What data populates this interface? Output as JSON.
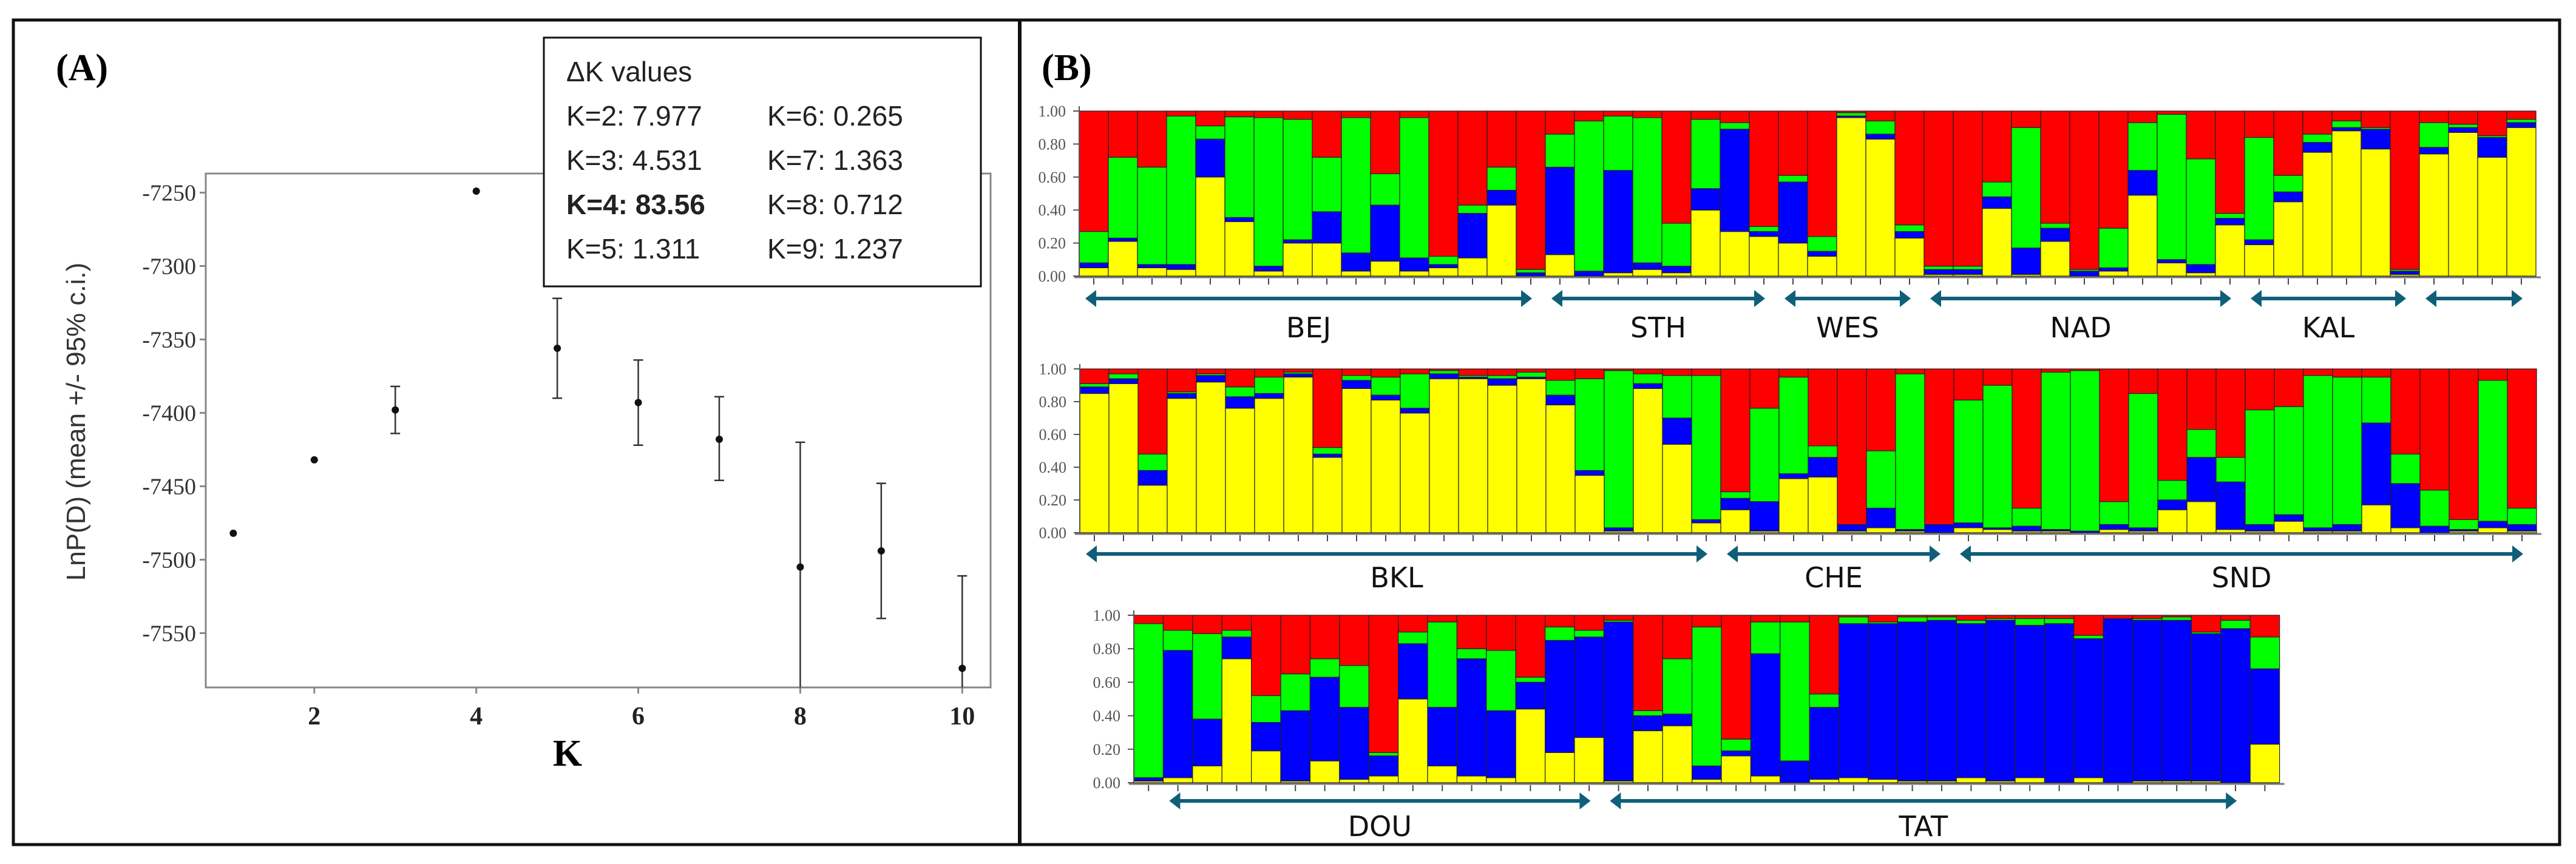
{
  "panel_a": {
    "label": "(A)",
    "legend": {
      "title": "ΔK values",
      "entries": [
        "K=2: 7.977",
        "K=6: 0.265",
        "K=3: 4.531",
        "K=7: 1.363",
        "K=4: 83.56",
        "K=8: 0.712",
        "K=5: 1.311",
        "K=9: 1.237"
      ],
      "bold_entry": "K=4: 83.56"
    }
  },
  "panel_b": {
    "label": "(B)"
  },
  "colors": {
    "cluster1": "#ffff00",
    "cluster2": "#0000ff",
    "cluster3": "#00ff00",
    "cluster4": "#ff0000",
    "arrow": "#0f5f79"
  },
  "chart_data": [
    {
      "type": "scatter",
      "title": "",
      "xlabel": "K",
      "ylabel": "LnP(D) (mean +/- 95% c.i.)",
      "xlim": [
        0.66,
        10.35
      ],
      "ylim": [
        -7587,
        -7237
      ],
      "xticks": [
        "2",
        "4",
        "6",
        "8",
        "10"
      ],
      "yticks": [
        "-7250",
        "-7300",
        "-7350",
        "-7400",
        "-7450",
        "-7500",
        "-7550"
      ],
      "grid": false,
      "points": [
        {
          "k": 1,
          "mean": -7482,
          "lo": -7483,
          "hi": -7481
        },
        {
          "k": 2,
          "mean": -7432,
          "lo": -7433,
          "hi": -7431
        },
        {
          "k": 3,
          "mean": -7398,
          "lo": -7414,
          "hi": -7382
        },
        {
          "k": 4,
          "mean": -7249,
          "lo": -7250,
          "hi": -7248
        },
        {
          "k": 5,
          "mean": -7356,
          "lo": -7390,
          "hi": -7322
        },
        {
          "k": 6,
          "mean": -7393,
          "lo": -7422,
          "hi": -7364
        },
        {
          "k": 7,
          "mean": -7418,
          "lo": -7446,
          "hi": -7389
        },
        {
          "k": 8,
          "mean": -7505,
          "lo": -7590,
          "hi": -7420
        },
        {
          "k": 9,
          "mean": -7494,
          "lo": -7540,
          "hi": -7448
        },
        {
          "k": 10,
          "mean": -7574,
          "lo": -7590,
          "hi": -7511
        }
      ]
    },
    {
      "type": "bar",
      "stacked": true,
      "yticks": [
        "1.00",
        "0.80",
        "0.60",
        "0.40",
        "0.20",
        "0.00"
      ],
      "ylim": [
        0,
        1
      ],
      "series_order": [
        "yellow",
        "blue",
        "green",
        "red"
      ],
      "individuals": [
        [
          0.05,
          0.03,
          0.19,
          0.73
        ],
        [
          0.21,
          0.02,
          0.49,
          0.28
        ],
        [
          0.05,
          0.02,
          0.59,
          0.34
        ],
        [
          0.04,
          0.03,
          0.9,
          0.03
        ],
        [
          0.6,
          0.23,
          0.08,
          0.09
        ],
        [
          0.33,
          0.025,
          0.61,
          0.035
        ],
        [
          0.03,
          0.03,
          0.9,
          0.04
        ],
        [
          0.2,
          0.02,
          0.73,
          0.05
        ],
        [
          0.2,
          0.19,
          0.33,
          0.28
        ],
        [
          0.03,
          0.11,
          0.82,
          0.04
        ],
        [
          0.09,
          0.34,
          0.19,
          0.38
        ],
        [
          0.03,
          0.08,
          0.85,
          0.04
        ],
        [
          0.05,
          0.02,
          0.05,
          0.88
        ],
        [
          0.11,
          0.27,
          0.05,
          0.57
        ],
        [
          0.43,
          0.09,
          0.14,
          0.34
        ],
        [
          0.0,
          0.02,
          0.02,
          0.96
        ],
        [
          0.13,
          0.53,
          0.2,
          0.14
        ],
        [
          0.0,
          0.03,
          0.91,
          0.06
        ],
        [
          0.02,
          0.62,
          0.33,
          0.03
        ],
        [
          0.04,
          0.04,
          0.88,
          0.04
        ],
        [
          0.02,
          0.04,
          0.26,
          0.68
        ],
        [
          0.4,
          0.13,
          0.42,
          0.05
        ],
        [
          0.27,
          0.62,
          0.04,
          0.07
        ],
        [
          0.24,
          0.03,
          0.03,
          0.7
        ],
        [
          0.2,
          0.37,
          0.04,
          0.39
        ],
        [
          0.12,
          0.03,
          0.09,
          0.76
        ],
        [
          0.96,
          0.01,
          0.02,
          0.01
        ],
        [
          0.83,
          0.03,
          0.08,
          0.06
        ],
        [
          0.23,
          0.04,
          0.04,
          0.69
        ],
        [
          0.01,
          0.03,
          0.02,
          0.94
        ],
        [
          0.01,
          0.03,
          0.02,
          0.94
        ],
        [
          0.41,
          0.07,
          0.09,
          0.43
        ],
        [
          0.01,
          0.16,
          0.73,
          0.1
        ],
        [
          0.21,
          0.08,
          0.03,
          0.68
        ],
        [
          0.0,
          0.03,
          0.01,
          0.96
        ],
        [
          0.03,
          0.02,
          0.24,
          0.71
        ],
        [
          0.49,
          0.15,
          0.29,
          0.07
        ],
        [
          0.08,
          0.02,
          0.88,
          0.02
        ],
        [
          0.02,
          0.05,
          0.64,
          0.29
        ],
        [
          0.31,
          0.04,
          0.03,
          0.62
        ],
        [
          0.19,
          0.03,
          0.62,
          0.16
        ],
        [
          0.45,
          0.06,
          0.1,
          0.39
        ],
        [
          0.75,
          0.06,
          0.05,
          0.14
        ],
        [
          0.88,
          0.02,
          0.04,
          0.06
        ],
        [
          0.77,
          0.12,
          0.01,
          0.1
        ],
        [
          0.01,
          0.02,
          0.01,
          0.96
        ],
        [
          0.74,
          0.04,
          0.15,
          0.07
        ],
        [
          0.87,
          0.03,
          0.02,
          0.08
        ],
        [
          0.72,
          0.12,
          0.01,
          0.15
        ],
        [
          0.9,
          0.03,
          0.02,
          0.05
        ]
      ],
      "groups": [
        {
          "name": "BEJ",
          "from": 1,
          "to": 16
        },
        {
          "name": "STH",
          "from": 17,
          "to": 24
        },
        {
          "name": "WES",
          "from": 25,
          "to": 29
        },
        {
          "name": "NAD",
          "from": 30,
          "to": 40
        },
        {
          "name": "KAL",
          "from": 41,
          "to": 46
        },
        {
          "name": "",
          "from": 47,
          "to": 50
        }
      ]
    },
    {
      "type": "bar",
      "stacked": true,
      "yticks": [
        "1.00",
        "0.80",
        "0.60",
        "0.40",
        "0.20",
        "0.00"
      ],
      "ylim": [
        0,
        1
      ],
      "series_order": [
        "yellow",
        "blue",
        "green",
        "red"
      ],
      "individuals": [
        [
          0.85,
          0.04,
          0.02,
          0.09
        ],
        [
          0.91,
          0.03,
          0.03,
          0.03
        ],
        [
          0.29,
          0.09,
          0.1,
          0.52
        ],
        [
          0.82,
          0.03,
          0.01,
          0.14
        ],
        [
          0.92,
          0.04,
          0.01,
          0.03
        ],
        [
          0.76,
          0.07,
          0.06,
          0.11
        ],
        [
          0.82,
          0.03,
          0.1,
          0.05
        ],
        [
          0.95,
          0.02,
          0.01,
          0.02
        ],
        [
          0.46,
          0.02,
          0.04,
          0.48
        ],
        [
          0.88,
          0.05,
          0.03,
          0.04
        ],
        [
          0.81,
          0.03,
          0.11,
          0.05
        ],
        [
          0.73,
          0.03,
          0.21,
          0.03
        ],
        [
          0.94,
          0.03,
          0.02,
          0.01
        ],
        [
          0.94,
          0.01,
          0.01,
          0.04
        ],
        [
          0.9,
          0.04,
          0.02,
          0.04
        ],
        [
          0.94,
          0.01,
          0.03,
          0.02
        ],
        [
          0.78,
          0.06,
          0.09,
          0.07
        ],
        [
          0.35,
          0.03,
          0.56,
          0.06
        ],
        [
          0.01,
          0.02,
          0.96,
          0.01
        ],
        [
          0.88,
          0.03,
          0.06,
          0.03
        ],
        [
          0.54,
          0.16,
          0.26,
          0.04
        ],
        [
          0.06,
          0.02,
          0.88,
          0.04
        ],
        [
          0.14,
          0.07,
          0.04,
          0.75
        ],
        [
          0.01,
          0.18,
          0.57,
          0.24
        ],
        [
          0.33,
          0.03,
          0.59,
          0.05
        ],
        [
          0.34,
          0.12,
          0.07,
          0.47
        ],
        [
          0.01,
          0.04,
          0.0,
          0.95
        ],
        [
          0.03,
          0.12,
          0.35,
          0.5
        ],
        [
          0.01,
          0.01,
          0.95,
          0.03
        ],
        [
          0.0,
          0.05,
          0.0,
          0.95
        ],
        [
          0.03,
          0.03,
          0.75,
          0.19
        ],
        [
          0.02,
          0.01,
          0.87,
          0.1
        ],
        [
          0.01,
          0.03,
          0.11,
          0.85
        ],
        [
          0.01,
          0.01,
          0.96,
          0.02
        ],
        [
          0.0,
          0.01,
          0.98,
          0.01
        ],
        [
          0.02,
          0.03,
          0.14,
          0.81
        ],
        [
          0.01,
          0.02,
          0.82,
          0.15
        ],
        [
          0.14,
          0.06,
          0.12,
          0.68
        ],
        [
          0.19,
          0.27,
          0.17,
          0.37
        ],
        [
          0.02,
          0.29,
          0.15,
          0.54
        ],
        [
          0.01,
          0.04,
          0.7,
          0.25
        ],
        [
          0.07,
          0.04,
          0.66,
          0.23
        ],
        [
          0.01,
          0.02,
          0.93,
          0.04
        ],
        [
          0.01,
          0.04,
          0.9,
          0.05
        ],
        [
          0.17,
          0.5,
          0.28,
          0.05
        ],
        [
          0.03,
          0.27,
          0.18,
          0.52
        ],
        [
          0.0,
          0.04,
          0.22,
          0.74
        ],
        [
          0.01,
          0.01,
          0.06,
          0.92
        ],
        [
          0.03,
          0.04,
          0.86,
          0.07
        ],
        [
          0.01,
          0.04,
          0.1,
          0.85
        ]
      ],
      "groups": [
        {
          "name": "BKL",
          "from": 1,
          "to": 22
        },
        {
          "name": "CHE",
          "from": 23,
          "to": 30
        },
        {
          "name": "SND",
          "from": 31,
          "to": 50
        }
      ]
    },
    {
      "type": "bar",
      "stacked": true,
      "yticks": [
        "1.00",
        "0.80",
        "0.60",
        "0.40",
        "0.20",
        "0.00"
      ],
      "ylim": [
        0,
        1
      ],
      "series_order": [
        "yellow",
        "blue",
        "green",
        "red"
      ],
      "individuals": [
        [
          0.01,
          0.02,
          0.92,
          0.05
        ],
        [
          0.03,
          0.76,
          0.12,
          0.09
        ],
        [
          0.1,
          0.28,
          0.51,
          0.11
        ],
        [
          0.74,
          0.13,
          0.04,
          0.09
        ],
        [
          0.19,
          0.17,
          0.16,
          0.48
        ],
        [
          0.01,
          0.42,
          0.22,
          0.35
        ],
        [
          0.13,
          0.5,
          0.11,
          0.26
        ],
        [
          0.02,
          0.43,
          0.25,
          0.3
        ],
        [
          0.04,
          0.12,
          0.02,
          0.82
        ],
        [
          0.5,
          0.33,
          0.07,
          0.1
        ],
        [
          0.1,
          0.35,
          0.51,
          0.04
        ],
        [
          0.04,
          0.7,
          0.06,
          0.2
        ],
        [
          0.03,
          0.4,
          0.36,
          0.21
        ],
        [
          0.44,
          0.16,
          0.03,
          0.37
        ],
        [
          0.18,
          0.67,
          0.08,
          0.07
        ],
        [
          0.27,
          0.6,
          0.04,
          0.09
        ],
        [
          0.01,
          0.95,
          0.01,
          0.03
        ],
        [
          0.31,
          0.09,
          0.03,
          0.57
        ],
        [
          0.34,
          0.07,
          0.33,
          0.26
        ],
        [
          0.02,
          0.08,
          0.83,
          0.07
        ],
        [
          0.16,
          0.03,
          0.07,
          0.74
        ],
        [
          0.04,
          0.73,
          0.19,
          0.04
        ],
        [
          0.0,
          0.13,
          0.83,
          0.04
        ],
        [
          0.02,
          0.43,
          0.08,
          0.47
        ],
        [
          0.03,
          0.92,
          0.04,
          0.01
        ],
        [
          0.02,
          0.93,
          0.01,
          0.04
        ],
        [
          0.01,
          0.95,
          0.03,
          0.01
        ],
        [
          0.01,
          0.96,
          0.02,
          0.01
        ],
        [
          0.03,
          0.92,
          0.02,
          0.03
        ],
        [
          0.01,
          0.96,
          0.01,
          0.02
        ],
        [
          0.03,
          0.91,
          0.04,
          0.02
        ],
        [
          0.0,
          0.95,
          0.03,
          0.02
        ],
        [
          0.03,
          0.83,
          0.02,
          0.12
        ],
        [
          0.0,
          0.98,
          0.0,
          0.02
        ],
        [
          0.01,
          0.96,
          0.01,
          0.02
        ],
        [
          0.01,
          0.96,
          0.02,
          0.01
        ],
        [
          0.01,
          0.88,
          0.01,
          0.1
        ],
        [
          0.0,
          0.92,
          0.05,
          0.03
        ],
        [
          0.23,
          0.45,
          0.19,
          0.13
        ]
      ],
      "groups": [
        {
          "name": "DOU",
          "from": 2,
          "to": 16
        },
        {
          "name": "TAT",
          "from": 17,
          "to": 38
        }
      ]
    }
  ]
}
